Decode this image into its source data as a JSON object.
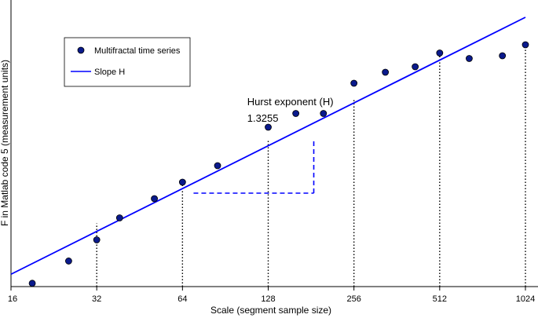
{
  "chart_data": {
    "type": "scatter",
    "title": "",
    "xlabel": "Scale (segment sample size)",
    "ylabel": "F in Matlab code 5 (measurement units)",
    "x_scale": "log2",
    "xlim": [
      16,
      1024
    ],
    "ylim": [
      0,
      1
    ],
    "x_ticks": [
      16,
      32,
      64,
      128,
      256,
      512,
      1024
    ],
    "x_tick_labels": [
      "16",
      "32",
      "64",
      "128",
      "256",
      "512",
      "1024"
    ],
    "legend": {
      "position": "top-left",
      "entries": [
        {
          "label": "Multifractal time series",
          "marker": "circle",
          "color": "#0a1a8c"
        },
        {
          "label": "Slope H",
          "marker": "line",
          "color": "#0000ff"
        }
      ]
    },
    "series": [
      {
        "name": "Multifractal time series",
        "marker": "circle",
        "color": "#0a1a8c",
        "points": [
          {
            "x": 19.0,
            "y": 0.012
          },
          {
            "x": 25.5,
            "y": 0.093
          },
          {
            "x": 32,
            "y": 0.17
          },
          {
            "x": 38.5,
            "y": 0.25
          },
          {
            "x": 51,
            "y": 0.32
          },
          {
            "x": 64,
            "y": 0.38
          },
          {
            "x": 85,
            "y": 0.44
          },
          {
            "x": 128,
            "y": 0.58
          },
          {
            "x": 160,
            "y": 0.63
          },
          {
            "x": 200,
            "y": 0.63
          },
          {
            "x": 256,
            "y": 0.74
          },
          {
            "x": 330,
            "y": 0.78
          },
          {
            "x": 420,
            "y": 0.8
          },
          {
            "x": 512,
            "y": 0.85
          },
          {
            "x": 650,
            "y": 0.83
          },
          {
            "x": 850,
            "y": 0.84
          },
          {
            "x": 1024,
            "y": 0.88
          }
        ]
      },
      {
        "name": "Slope H",
        "type": "line",
        "color": "#0000ff",
        "points": [
          {
            "x": 16,
            "y": 0.045
          },
          {
            "x": 1024,
            "y": 0.98
          }
        ]
      }
    ],
    "reference_lines": {
      "style": "dotted",
      "color": "#000000",
      "segments": [
        {
          "x": 32,
          "y_from": 0.0,
          "y_to": 0.23
        },
        {
          "x": 64,
          "y_from": 0.0,
          "y_to": 0.38
        },
        {
          "x": 128,
          "y_from": 0.0,
          "y_to": 0.53
        },
        {
          "x": 256,
          "y_from": 0.0,
          "y_to": 0.68
        },
        {
          "x": 512,
          "y_from": 0.0,
          "y_to": 0.85
        },
        {
          "x": 1024,
          "y_from": 0.0,
          "y_to": 0.88
        }
      ]
    },
    "slope_triangle": {
      "style": "dashed",
      "color": "#0000ff",
      "x_from": 70,
      "x_to": 185,
      "y_base": 0.34,
      "y_top": 0.54
    },
    "annotations": [
      {
        "text": "Hurst exponent (H)",
        "x": 108,
        "y": 0.66
      },
      {
        "text": "1.3255",
        "x": 108,
        "y": 0.6
      }
    ],
    "grid": false
  }
}
